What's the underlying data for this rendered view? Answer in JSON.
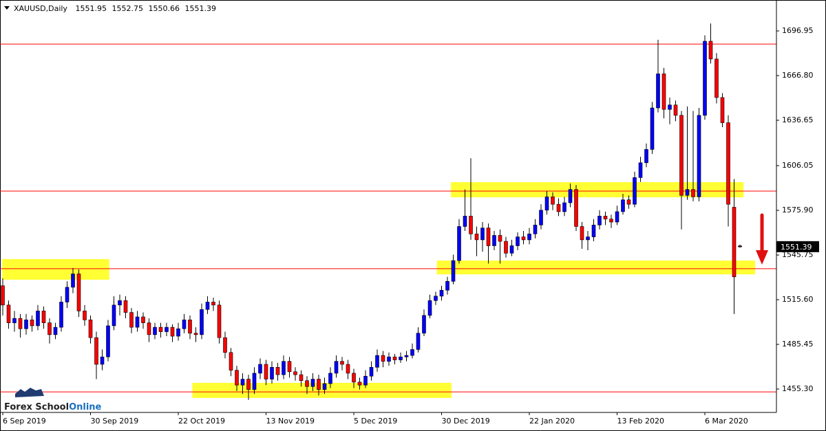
{
  "chart_data": {
    "type": "candlestick",
    "title": "XAUUSD,Daily",
    "open": [
      1525,
      1512,
      1500,
      1503,
      1496,
      1502,
      1498,
      1508,
      1500,
      1492,
      1497,
      1514,
      1524,
      1533,
      1508,
      1502,
      1490,
      1472,
      1477,
      1498,
      1512,
      1515,
      1507,
      1497,
      1504,
      1500,
      1492,
      1497,
      1494,
      1497,
      1491,
      1496,
      1502,
      1493,
      1492,
      1509,
      1514,
      1512,
      1490,
      1480,
      1468,
      1458,
      1462,
      1455,
      1466,
      1472,
      1462,
      1470,
      1465,
      1474,
      1467,
      1465,
      1461,
      1457,
      1462,
      1455,
      1459,
      1466,
      1474,
      1472,
      1466,
      1460,
      1458,
      1464,
      1470,
      1478,
      1474,
      1477,
      1475,
      1477,
      1478,
      1482,
      1493,
      1505,
      1515,
      1518,
      1522,
      1528,
      1542,
      1565,
      1572,
      1560,
      1556,
      1564,
      1552,
      1559,
      1555,
      1547,
      1552,
      1558,
      1556,
      1560,
      1566,
      1576,
      1585,
      1580,
      1575,
      1581,
      1590,
      1565,
      1556,
      1558,
      1566,
      1572,
      1570,
      1568,
      1575,
      1583,
      1580,
      1598,
      1608,
      1617,
      1645,
      1668,
      1644,
      1647,
      1640,
      1586,
      1590,
      1585,
      1640,
      1690,
      1678,
      1652,
      1635,
      1578,
      1551.95
    ],
    "high": [
      1530,
      1515,
      1508,
      1506,
      1506,
      1505,
      1512,
      1511,
      1503,
      1500,
      1518,
      1528,
      1537,
      1536,
      1512,
      1505,
      1494,
      1482,
      1502,
      1518,
      1519,
      1518,
      1510,
      1508,
      1507,
      1503,
      1500,
      1500,
      1500,
      1499,
      1500,
      1506,
      1505,
      1497,
      1513,
      1518,
      1517,
      1515,
      1494,
      1483,
      1471,
      1466,
      1465,
      1470,
      1476,
      1475,
      1474,
      1473,
      1478,
      1477,
      1470,
      1468,
      1464,
      1466,
      1465,
      1463,
      1470,
      1478,
      1477,
      1475,
      1469,
      1463,
      1468,
      1474,
      1482,
      1481,
      1480,
      1479,
      1480,
      1481,
      1486,
      1497,
      1509,
      1519,
      1521,
      1525,
      1531,
      1546,
      1570,
      1590,
      1611,
      1565,
      1568,
      1567,
      1562,
      1563,
      1558,
      1556,
      1561,
      1562,
      1564,
      1570,
      1580,
      1589,
      1588,
      1584,
      1585,
      1594,
      1593,
      1568,
      1562,
      1570,
      1576,
      1575,
      1573,
      1579,
      1587,
      1586,
      1602,
      1612,
      1621,
      1649,
      1691,
      1672,
      1652,
      1650,
      1643,
      1646,
      1643,
      1645,
      1694,
      1702,
      1682,
      1655,
      1640,
      1597,
      1552.75
    ],
    "low": [
      1505,
      1496,
      1494,
      1490,
      1492,
      1494,
      1495,
      1496,
      1486,
      1489,
      1494,
      1510,
      1520,
      1504,
      1498,
      1486,
      1462,
      1468,
      1474,
      1495,
      1505,
      1503,
      1493,
      1494,
      1496,
      1487,
      1489,
      1490,
      1491,
      1487,
      1488,
      1493,
      1489,
      1487,
      1489,
      1506,
      1508,
      1486,
      1476,
      1464,
      1454,
      1452,
      1448,
      1452,
      1462,
      1458,
      1459,
      1461,
      1462,
      1463,
      1461,
      1457,
      1452,
      1454,
      1451,
      1452,
      1456,
      1463,
      1468,
      1462,
      1456,
      1455,
      1456,
      1461,
      1467,
      1470,
      1471,
      1472,
      1473,
      1474,
      1476,
      1480,
      1491,
      1503,
      1512,
      1515,
      1519,
      1526,
      1540,
      1562,
      1556,
      1545,
      1548,
      1540,
      1549,
      1540,
      1544,
      1545,
      1549,
      1553,
      1553,
      1557,
      1563,
      1573,
      1576,
      1572,
      1572,
      1578,
      1562,
      1550,
      1549,
      1555,
      1563,
      1566,
      1564,
      1566,
      1573,
      1577,
      1578,
      1595,
      1605,
      1614,
      1642,
      1638,
      1634,
      1636,
      1563,
      1583,
      1582,
      1582,
      1637,
      1675,
      1648,
      1632,
      1565,
      1506,
      1550.66
    ],
    "close": [
      1512,
      1500,
      1503,
      1496,
      1502,
      1498,
      1508,
      1500,
      1492,
      1497,
      1514,
      1524,
      1533,
      1508,
      1502,
      1490,
      1472,
      1477,
      1498,
      1512,
      1515,
      1507,
      1497,
      1504,
      1500,
      1492,
      1497,
      1494,
      1497,
      1491,
      1496,
      1502,
      1493,
      1492,
      1509,
      1514,
      1512,
      1490,
      1480,
      1468,
      1458,
      1462,
      1455,
      1466,
      1472,
      1462,
      1470,
      1465,
      1474,
      1467,
      1465,
      1461,
      1457,
      1462,
      1455,
      1459,
      1466,
      1474,
      1472,
      1466,
      1460,
      1458,
      1464,
      1470,
      1478,
      1474,
      1477,
      1475,
      1477,
      1478,
      1482,
      1493,
      1505,
      1515,
      1518,
      1522,
      1528,
      1542,
      1565,
      1572,
      1560,
      1556,
      1564,
      1552,
      1559,
      1555,
      1547,
      1552,
      1558,
      1556,
      1560,
      1566,
      1576,
      1585,
      1580,
      1575,
      1581,
      1590,
      1565,
      1556,
      1558,
      1566,
      1572,
      1570,
      1568,
      1575,
      1583,
      1580,
      1598,
      1608,
      1617,
      1645,
      1668,
      1644,
      1647,
      1640,
      1586,
      1590,
      1585,
      1640,
      1690,
      1678,
      1652,
      1635,
      1580,
      1531,
      1551.39
    ],
    "bull_color": "#0000ff",
    "bear_color": "#ff0000",
    "ylim": [
      1439.53,
      1717.82
    ],
    "yticks": [
      {
        "value": 1455.3,
        "label": "1455.30"
      },
      1485.45,
      {
        "value": 1515.6,
        "label": "1515.60"
      },
      1545.75,
      {
        "value": 1575.9,
        "label": "1575.90"
      },
      1606.05,
      1636.65,
      {
        "value": 1666.8,
        "label": "1666.80"
      },
      1696.95
    ],
    "xticks": [
      {
        "value": 0,
        "label": "6 Sep 2019"
      },
      {
        "value": 15,
        "label": "30 Sep 2019"
      },
      {
        "value": 30,
        "label": "22 Oct 2019"
      },
      {
        "value": 45,
        "label": "13 Nov 2019"
      },
      {
        "value": 60,
        "label": "5 Dec 2019"
      },
      {
        "value": 75,
        "label": "30 Dec 2019"
      },
      {
        "value": 90,
        "label": "22 Jan 2020"
      },
      {
        "value": 105,
        "label": "13 Feb 2020"
      },
      {
        "value": 120,
        "label": "6 Mar 2020"
      }
    ],
    "levels": [
      1688.1,
      1588.9,
      1536.5,
      1453.4
    ],
    "level_color": "#ff0000",
    "zones": [
      {
        "x": [
          -0.1,
          18.2
        ],
        "y": [
          1529.1,
          1543.0
        ]
      },
      {
        "x": [
          32.4,
          76.7
        ],
        "y": [
          1449.3,
          1459.5
        ]
      },
      {
        "x": [
          76.6,
          126.6
        ],
        "y": [
          1584.7,
          1594.9
        ]
      },
      {
        "x": [
          74.2,
          128.6
        ],
        "y": [
          1532.7,
          1542.0
        ]
      }
    ],
    "zone_color": "#ffff33",
    "watermark": [
      "Forex School",
      "Online"
    ]
  }
}
